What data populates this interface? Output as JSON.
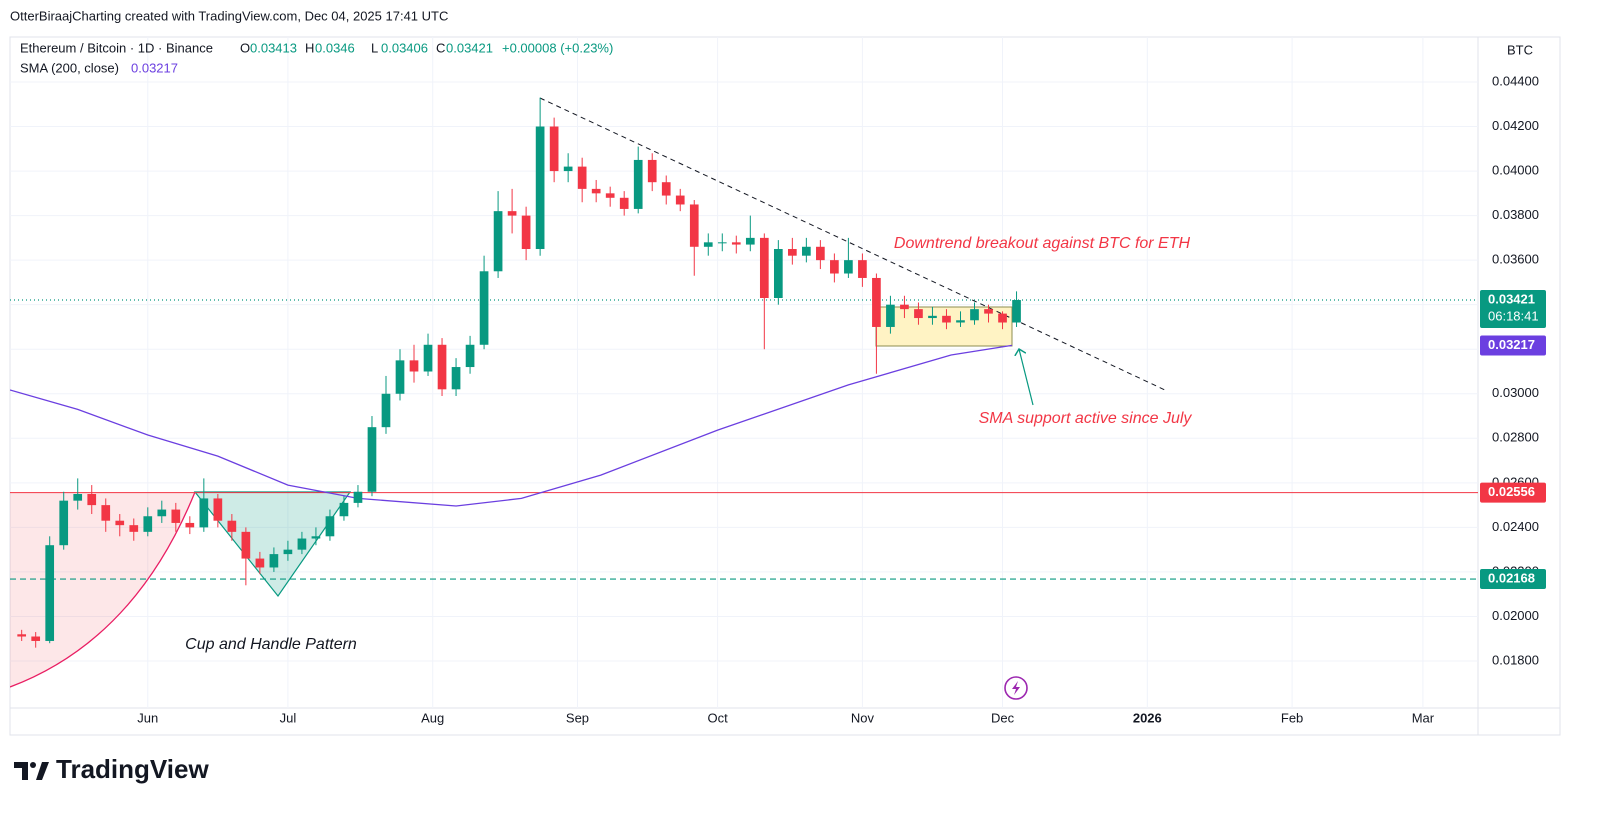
{
  "header": {
    "attribution": "OtterBiraajCharting created with TradingView.com, Dec 04, 2025 17:41 UTC"
  },
  "footer": {
    "logo": "TradingView"
  },
  "annotations": {
    "breakout": "Downtrend breakout against BTC for ETH",
    "sma_support": "SMA support active since July",
    "pattern": "Cup and Handle Pattern"
  },
  "chart_data": {
    "type": "candlestick",
    "legend": {
      "symbol": "Ethereum / Bitcoin · 1D · Binance",
      "fields": [
        {
          "label": "O",
          "value": 0.03413
        },
        {
          "label": "H",
          "value": 0.0346
        },
        {
          "label": "L",
          "value": 0.03406
        },
        {
          "label": "C",
          "value": 0.03421
        }
      ],
      "change": "+0.00008 (+0.23%)"
    },
    "currency": "BTC",
    "up_color": "#089981",
    "down_color": "#f23645",
    "grid": true,
    "x": [
      -27,
      -24,
      -21,
      -18,
      -15,
      -12,
      -9,
      -6,
      -3,
      0,
      3,
      6,
      9,
      12,
      15,
      18,
      21,
      24,
      27,
      30,
      33,
      36,
      39,
      42,
      45,
      48,
      51,
      54,
      57,
      60,
      63,
      66,
      69,
      72,
      75,
      78,
      81,
      84,
      87,
      90,
      93,
      96,
      99,
      102,
      105,
      108,
      111,
      114,
      117,
      120,
      123,
      126,
      129,
      132,
      135,
      138,
      141,
      144,
      147,
      150,
      153,
      156,
      159,
      162,
      165,
      168,
      171,
      174,
      177,
      180,
      183,
      186
    ],
    "open": [
      0.0192,
      0.0191,
      0.0189,
      0.0232,
      0.0252,
      0.0255,
      0.025,
      0.0243,
      0.0241,
      0.0238,
      0.0245,
      0.0248,
      0.0242,
      0.024,
      0.0253,
      0.0243,
      0.0238,
      0.0226,
      0.0222,
      0.0228,
      0.023,
      0.0235,
      0.0236,
      0.0245,
      0.0251,
      0.0256,
      0.0285,
      0.03,
      0.0315,
      0.031,
      0.0322,
      0.0302,
      0.0312,
      0.0322,
      0.0355,
      0.0382,
      0.038,
      0.0365,
      0.042,
      0.04,
      0.0402,
      0.0392,
      0.039,
      0.0388,
      0.0383,
      0.0405,
      0.0395,
      0.0389,
      0.0385,
      0.0366,
      0.0368,
      0.0368,
      0.0367,
      0.037,
      0.0343,
      0.0365,
      0.0362,
      0.0366,
      0.036,
      0.0354,
      0.036,
      0.0352,
      0.033,
      0.034,
      0.0338,
      0.0334,
      0.0335,
      0.0332,
      0.0333,
      0.0338,
      0.0336,
      0.0332
    ],
    "high": [
      0.0194,
      0.0193,
      0.0236,
      0.0256,
      0.0262,
      0.0259,
      0.0253,
      0.0246,
      0.0244,
      0.0249,
      0.0252,
      0.0251,
      0.0245,
      0.0262,
      0.0255,
      0.0246,
      0.024,
      0.0229,
      0.0231,
      0.0234,
      0.0238,
      0.024,
      0.0248,
      0.0254,
      0.0259,
      0.029,
      0.0308,
      0.032,
      0.0322,
      0.0327,
      0.0325,
      0.0316,
      0.0326,
      0.0362,
      0.0391,
      0.0392,
      0.0384,
      0.0433,
      0.0424,
      0.0408,
      0.0406,
      0.0396,
      0.0393,
      0.0391,
      0.0411,
      0.0408,
      0.0398,
      0.0392,
      0.0387,
      0.0372,
      0.0372,
      0.0371,
      0.038,
      0.0372,
      0.0369,
      0.037,
      0.037,
      0.0369,
      0.0363,
      0.037,
      0.0363,
      0.0354,
      0.0344,
      0.0344,
      0.0341,
      0.0339,
      0.0338,
      0.0337,
      0.0341,
      0.034,
      0.0337,
      0.0346
    ],
    "low": [
      0.0189,
      0.0186,
      0.0188,
      0.023,
      0.0248,
      0.0246,
      0.0238,
      0.0236,
      0.0234,
      0.0236,
      0.0242,
      0.0238,
      0.0237,
      0.0238,
      0.024,
      0.0234,
      0.0214,
      0.0219,
      0.022,
      0.0225,
      0.0228,
      0.0232,
      0.0234,
      0.0243,
      0.0249,
      0.0254,
      0.0282,
      0.0297,
      0.0305,
      0.0308,
      0.0299,
      0.0299,
      0.0309,
      0.032,
      0.0352,
      0.0372,
      0.036,
      0.0362,
      0.0395,
      0.0395,
      0.0386,
      0.0386,
      0.0384,
      0.038,
      0.0381,
      0.0391,
      0.0385,
      0.0382,
      0.0353,
      0.0362,
      0.0364,
      0.0363,
      0.0364,
      0.032,
      0.034,
      0.0358,
      0.0359,
      0.0356,
      0.035,
      0.0352,
      0.0348,
      0.0309,
      0.0327,
      0.0334,
      0.0331,
      0.0331,
      0.0329,
      0.033,
      0.0331,
      0.0332,
      0.0329,
      0.033
    ],
    "close": [
      0.0191,
      0.0189,
      0.0232,
      0.0252,
      0.0255,
      0.025,
      0.0243,
      0.0241,
      0.0238,
      0.0245,
      0.0248,
      0.0242,
      0.024,
      0.0253,
      0.0243,
      0.0238,
      0.0226,
      0.0222,
      0.0228,
      0.023,
      0.0235,
      0.0236,
      0.0245,
      0.0251,
      0.0256,
      0.0285,
      0.03,
      0.0315,
      0.031,
      0.0322,
      0.0302,
      0.0312,
      0.0322,
      0.0355,
      0.0382,
      0.038,
      0.0365,
      0.042,
      0.04,
      0.0402,
      0.0392,
      0.039,
      0.0388,
      0.0383,
      0.0405,
      0.0395,
      0.0389,
      0.0385,
      0.0366,
      0.0368,
      0.0368,
      0.0367,
      0.037,
      0.0343,
      0.0365,
      0.0362,
      0.0366,
      0.036,
      0.0354,
      0.036,
      0.0352,
      0.033,
      0.034,
      0.0338,
      0.0334,
      0.0335,
      0.0332,
      0.0333,
      0.0338,
      0.0336,
      0.0332,
      0.03421
    ],
    "xlim": [
      -29.5,
      284.8
    ],
    "xticks": [
      {
        "value": 0,
        "label": "Jun"
      },
      {
        "value": 30,
        "label": "Jul"
      },
      {
        "value": 61,
        "label": "Aug"
      },
      {
        "value": 92,
        "label": "Sep"
      },
      {
        "value": 122,
        "label": "Oct"
      },
      {
        "value": 153,
        "label": "Nov"
      },
      {
        "value": 183,
        "label": "Dec"
      },
      {
        "value": 214,
        "label": "2026"
      },
      {
        "value": 245,
        "label": "Feb"
      },
      {
        "value": 273,
        "label": "Mar"
      }
    ],
    "ylim": [
      0.01589,
      0.04602
    ],
    "yticks": [
      {
        "value": 0.018,
        "label": "0.01800"
      },
      {
        "value": 0.02,
        "label": "0.02000"
      },
      {
        "value": 0.022,
        "label": "0.02200"
      },
      {
        "value": 0.024,
        "label": "0.02400"
      },
      {
        "value": 0.026,
        "label": "0.02600"
      },
      {
        "value": 0.028,
        "label": "0.02800"
      },
      {
        "value": 0.03,
        "label": "0.03000"
      },
      {
        "value": 0.032,
        "label": "0.03200"
      },
      {
        "value": 0.034,
        "label": "0.03400"
      },
      {
        "value": 0.036,
        "label": "0.03600"
      },
      {
        "value": 0.038,
        "label": "0.03800"
      },
      {
        "value": 0.04,
        "label": "0.04000"
      },
      {
        "value": 0.042,
        "label": "0.04200"
      },
      {
        "value": 0.044,
        "label": "0.04400"
      }
    ],
    "indicator": {
      "name": "SMA (200, close)",
      "value": 0.03217,
      "color": "#6b3fe0",
      "x": [
        -29.5,
        -15,
        0,
        15,
        30,
        45,
        66,
        80,
        97,
        122,
        150,
        172,
        185
      ],
      "values": [
        0.03017,
        0.0293,
        0.02815,
        0.0272,
        0.0259,
        0.0253,
        0.02496,
        0.0253,
        0.02635,
        0.02837,
        0.0304,
        0.03174,
        0.03217
      ]
    },
    "price_lines": [
      {
        "value": 0.03421,
        "color": "#089981",
        "style": "dotted",
        "countdown": "06:18:41"
      },
      {
        "value": 0.02556,
        "color": "#f23645",
        "style": "solid"
      },
      {
        "value": 0.02168,
        "color": "#089981",
        "style": "dashed"
      }
    ]
  }
}
